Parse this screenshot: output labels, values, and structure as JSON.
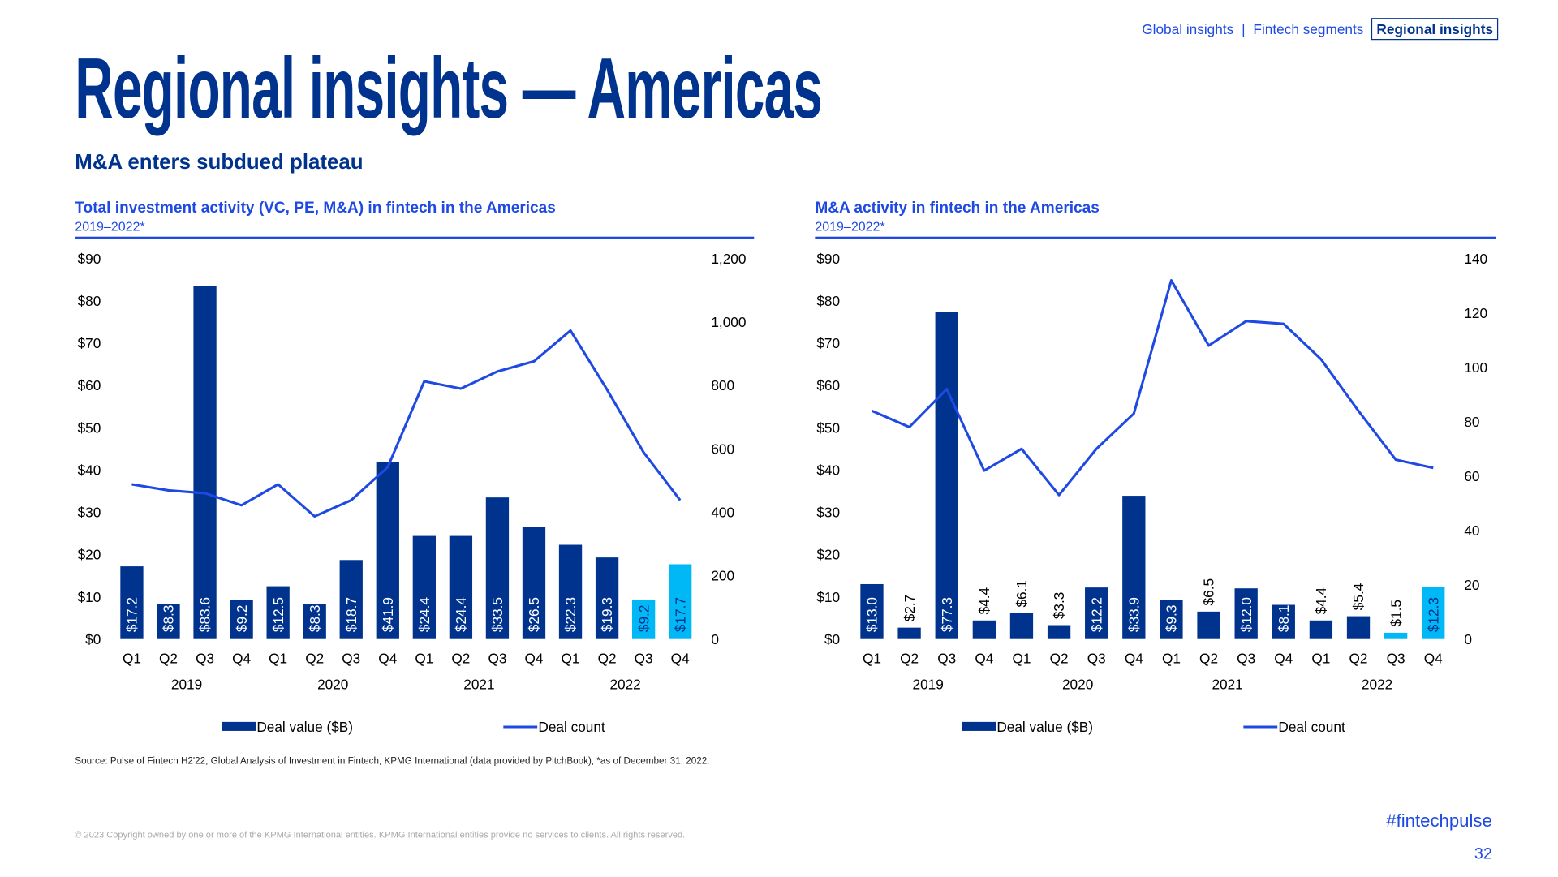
{
  "nav": {
    "items": [
      "Global insights",
      "Fintech segments",
      "Regional insights"
    ],
    "active": 2,
    "separator": "|"
  },
  "page_title": "Regional insights — Americas",
  "subtitle": "M&A enters subdued plateau",
  "colors": {
    "bar": "#00338D",
    "bar_highlight": "#00B8F5",
    "line": "#1E49E2",
    "title": "#00338D"
  },
  "chart_data": [
    {
      "type": "bar+line",
      "title": "Total investment activity (VC, PE, M&A) in fintech in the Americas",
      "subtitle": "2019–2022*",
      "categories": [
        "Q1",
        "Q2",
        "Q3",
        "Q4",
        "Q1",
        "Q2",
        "Q3",
        "Q4",
        "Q1",
        "Q2",
        "Q3",
        "Q4",
        "Q1",
        "Q2",
        "Q3",
        "Q4"
      ],
      "years": [
        "2019",
        "2020",
        "2021",
        "2022"
      ],
      "series": [
        {
          "name": "Deal value ($B)",
          "type": "bar",
          "axis": "left",
          "values": [
            17.2,
            8.3,
            83.6,
            9.2,
            12.5,
            8.3,
            18.7,
            41.9,
            24.4,
            24.4,
            33.5,
            26.5,
            22.3,
            19.3,
            9.2,
            17.7
          ],
          "labels": [
            "$17.2",
            "$8.3",
            "$83.6",
            "$9.2",
            "$12.5",
            "$8.3",
            "$18.7",
            "$41.9",
            "$24.4",
            "$24.4",
            "$33.5",
            "$26.5",
            "$22.3",
            "$19.3",
            "$9.2",
            "$17.7"
          ],
          "highlight": [
            14,
            15
          ]
        },
        {
          "name": "Deal count",
          "type": "line",
          "axis": "right",
          "values": [
            488,
            469,
            460,
            422,
            488,
            387,
            438,
            542,
            813,
            790,
            844,
            876,
            973,
            787,
            589,
            438
          ]
        }
      ],
      "left_axis": {
        "range": [
          0,
          90
        ],
        "ticks": [
          "$0",
          "$10",
          "$20",
          "$30",
          "$40",
          "$50",
          "$60",
          "$70",
          "$80",
          "$90"
        ]
      },
      "right_axis": {
        "range": [
          0,
          1200
        ],
        "ticks": [
          "0",
          "200",
          "400",
          "600",
          "800",
          "1,000",
          "1,200"
        ]
      },
      "grid": false,
      "legend": "bottom"
    },
    {
      "type": "bar+line",
      "title": "M&A activity in fintech in the Americas",
      "subtitle": "2019–2022*",
      "categories": [
        "Q1",
        "Q2",
        "Q3",
        "Q4",
        "Q1",
        "Q2",
        "Q3",
        "Q4",
        "Q1",
        "Q2",
        "Q3",
        "Q4",
        "Q1",
        "Q2",
        "Q3",
        "Q4"
      ],
      "years": [
        "2019",
        "2020",
        "2021",
        "2022"
      ],
      "series": [
        {
          "name": "Deal value ($B)",
          "type": "bar",
          "axis": "left",
          "values": [
            13.0,
            2.7,
            77.3,
            4.4,
            6.1,
            3.3,
            12.2,
            33.9,
            9.3,
            6.5,
            12.0,
            8.1,
            4.4,
            5.4,
            1.5,
            12.3
          ],
          "labels": [
            "$13.0",
            "$2.7",
            "$77.3",
            "$4.4",
            "$6.1",
            "$3.3",
            "$12.2",
            "$33.9",
            "$9.3",
            "$6.5",
            "$12.0",
            "$8.1",
            "$4.4",
            "$5.4",
            "$1.5",
            "$12.3"
          ],
          "highlight": [
            14,
            15
          ]
        },
        {
          "name": "Deal count",
          "type": "line",
          "axis": "right",
          "values": [
            84,
            78,
            92,
            62,
            70,
            53,
            70,
            83,
            132,
            108,
            117,
            116,
            103,
            84,
            66,
            63
          ]
        }
      ],
      "left_axis": {
        "range": [
          0,
          90
        ],
        "ticks": [
          "$0",
          "$10",
          "$20",
          "$30",
          "$40",
          "$50",
          "$60",
          "$70",
          "$80",
          "$90"
        ]
      },
      "right_axis": {
        "range": [
          0,
          140
        ],
        "ticks": [
          "0",
          "20",
          "40",
          "60",
          "80",
          "100",
          "120",
          "140"
        ]
      },
      "grid": false,
      "legend": "bottom"
    }
  ],
  "source": "Source: Pulse of Fintech H2'22, Global Analysis of Investment in Fintech, KPMG International (data provided by PitchBook), *as of December 31, 2022.",
  "copyright": "© 2023 Copyright owned by one or more of the KPMG International entities. KPMG International entities provide no services to clients. All rights reserved.",
  "hashtag": "#fintechpulse",
  "page_number": "32"
}
